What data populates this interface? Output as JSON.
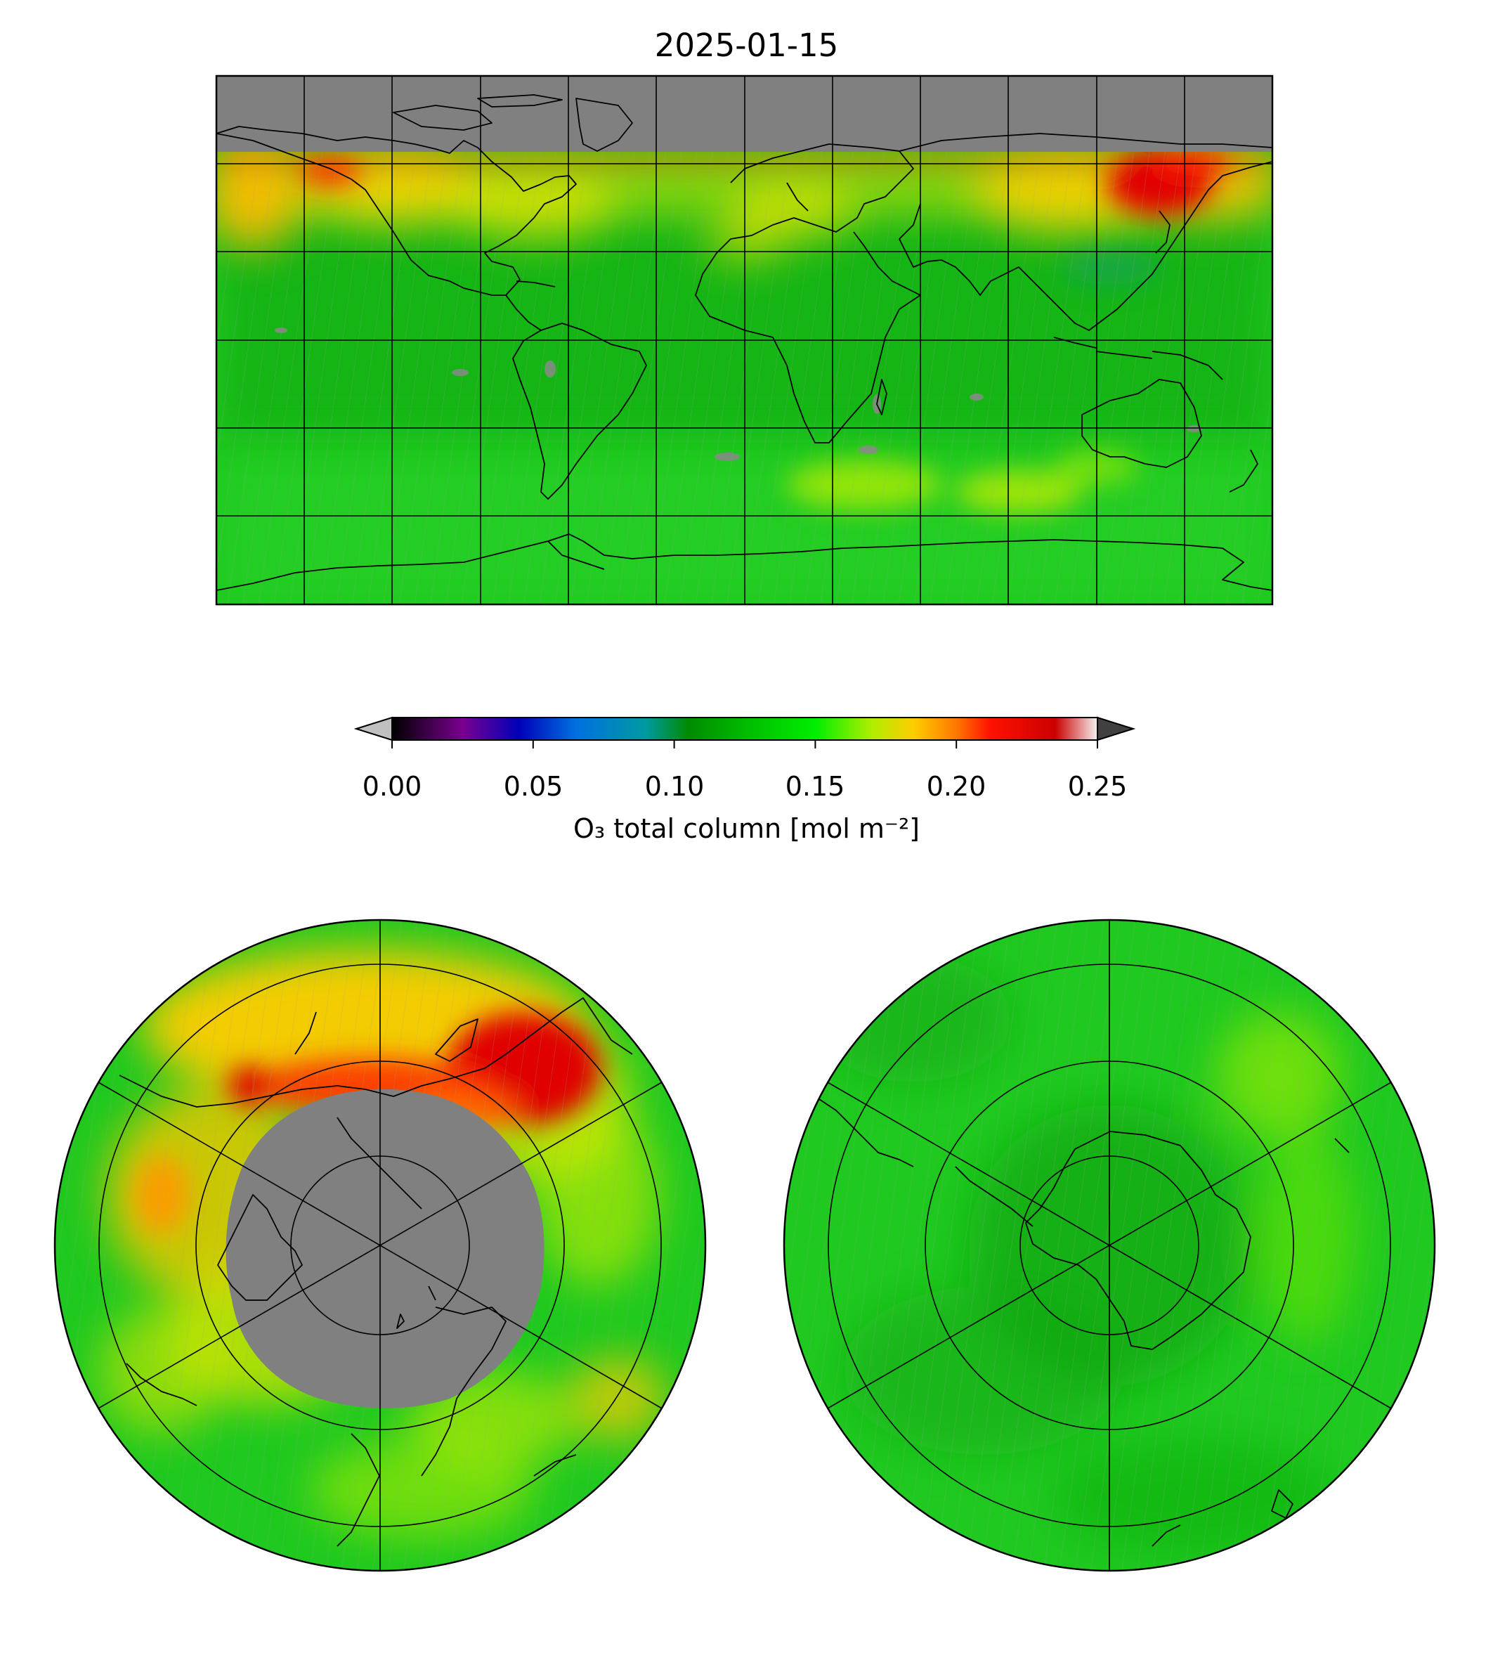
{
  "title": "2025-01-15",
  "colorbar": {
    "label": "O₃ total column [mol m⁻²]",
    "min": 0.0,
    "max": 0.25,
    "extend": "both",
    "ticks": [
      "0.00",
      "0.05",
      "0.10",
      "0.15",
      "0.20",
      "0.25"
    ],
    "tick_values": [
      0.0,
      0.05,
      0.1,
      0.15,
      0.2,
      0.25
    ],
    "stops": [
      {
        "v": 0.0,
        "color": "#000000"
      },
      {
        "v": 0.025,
        "color": "#7a0090"
      },
      {
        "v": 0.045,
        "color": "#0000b8"
      },
      {
        "v": 0.065,
        "color": "#0070e0"
      },
      {
        "v": 0.09,
        "color": "#009aa0"
      },
      {
        "v": 0.105,
        "color": "#008a00"
      },
      {
        "v": 0.125,
        "color": "#00bb00"
      },
      {
        "v": 0.15,
        "color": "#00ee00"
      },
      {
        "v": 0.17,
        "color": "#b0ee00"
      },
      {
        "v": 0.185,
        "color": "#ffcc00"
      },
      {
        "v": 0.2,
        "color": "#ff7700"
      },
      {
        "v": 0.212,
        "color": "#ff1100"
      },
      {
        "v": 0.235,
        "color": "#cc0000"
      },
      {
        "v": 0.25,
        "color": "#f4f0f0"
      }
    ],
    "under_color": "#c0c0c0",
    "over_color": "#404040"
  },
  "colors": {
    "no_data": "#808080",
    "background_field": "#1fc91f",
    "coastline": "#000000"
  },
  "maps": [
    {
      "name": "global-map",
      "projection": "plate-carree"
    },
    {
      "name": "north-polar-map",
      "projection": "north-polar-stereographic"
    },
    {
      "name": "south-polar-map",
      "projection": "south-polar-stereographic"
    }
  ]
}
